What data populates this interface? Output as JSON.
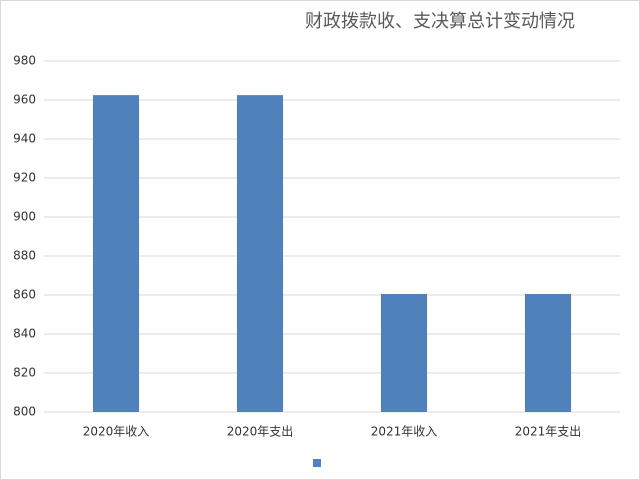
{
  "chart_data": {
    "type": "bar",
    "title": "财政拨款收、支决算总计变动情况",
    "categories": [
      "2020年收入",
      "2020年支出",
      "2021年收入",
      "2021年支出"
    ],
    "values": [
      962.5,
      962.5,
      860.5,
      860.5
    ],
    "color": "#4f81bd",
    "ylim": [
      800,
      980
    ],
    "yticks": [
      800,
      820,
      840,
      860,
      880,
      900,
      920,
      940,
      960,
      980
    ],
    "grid": true
  }
}
